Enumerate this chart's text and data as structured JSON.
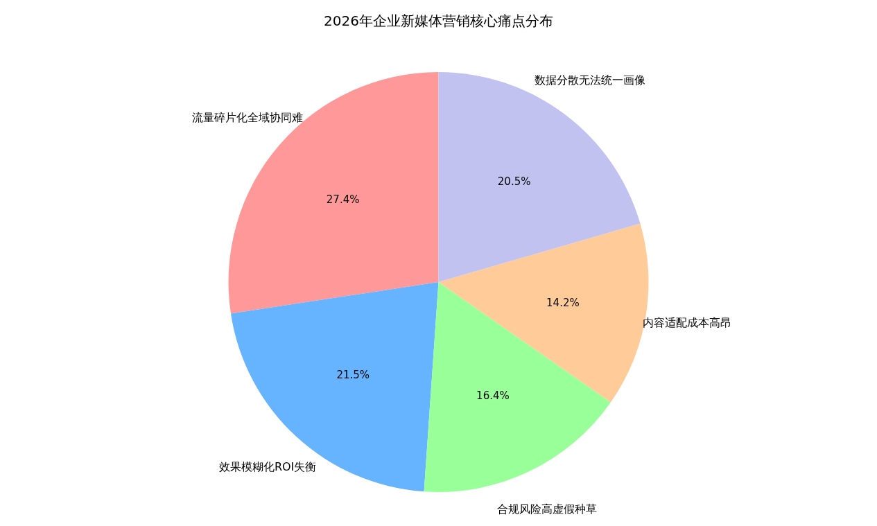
{
  "chart_data": {
    "type": "pie",
    "title": "2026年企业新媒体营销核心痛点分布",
    "categories": [
      "流量碎片化全域协同难",
      "效果模糊化ROI失衡",
      "合规风险高虚假种草",
      "内容适配成本高昂",
      "数据分散无法统一画像"
    ],
    "values": [
      27.4,
      21.5,
      16.4,
      14.2,
      20.5
    ],
    "value_labels": [
      "27.4%",
      "21.5%",
      "16.4%",
      "14.2%",
      "20.5%"
    ],
    "colors": [
      "#ff9999",
      "#66b3ff",
      "#99ff99",
      "#ffcc99",
      "#c2c2f0"
    ],
    "legend": false
  }
}
